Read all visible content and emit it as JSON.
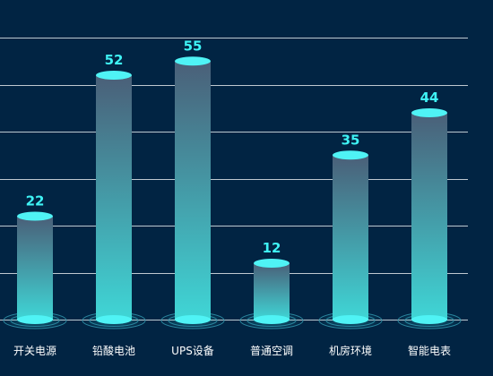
{
  "chart_data": {
    "type": "bar",
    "title": "",
    "xlabel": "",
    "ylabel": "",
    "categories": [
      "开关电源",
      "铅酸电池",
      "UPS设备",
      "普通空调",
      "机房环境",
      "智能电表"
    ],
    "values": [
      22,
      52,
      55,
      12,
      35,
      44
    ],
    "ylim": [
      0,
      60
    ],
    "grid": true,
    "gridlines": [
      0,
      10,
      20,
      30,
      40,
      50,
      60
    ],
    "colors": {
      "background": "#012443",
      "bar_top": "#4a5f78",
      "bar_bottom": "#3fd6d6",
      "cap": "#4ff3f5",
      "value_label": "#3ff3f5",
      "category_label": "#ffffff",
      "grid": "#ffffff",
      "ring": "#2e8fa6"
    }
  }
}
